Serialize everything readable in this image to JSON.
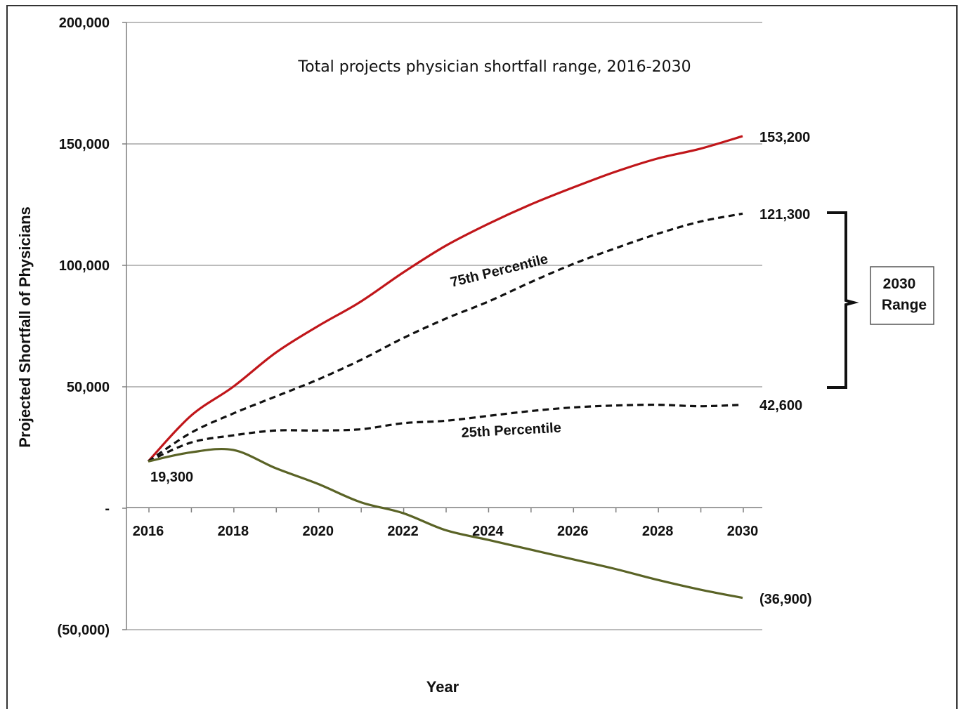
{
  "chart_data": {
    "type": "line",
    "title": "Total projects physician shortfall range, 2016-2030",
    "xlabel": "Year",
    "ylabel": "Projected Shortfall of Physicians",
    "ylim": [
      -50000,
      200000
    ],
    "xlim": [
      2016,
      2030
    ],
    "grid": true,
    "y_ticks": [
      {
        "value": 200000,
        "label": "200,000"
      },
      {
        "value": 150000,
        "label": "150,000"
      },
      {
        "value": 100000,
        "label": "100,000"
      },
      {
        "value": 50000,
        "label": "50,000"
      },
      {
        "value": 0,
        "label": "-"
      },
      {
        "value": -50000,
        "label": "(50,000)"
      }
    ],
    "x_ticks": [
      {
        "value": 2016,
        "label": "2016"
      },
      {
        "value": 2018,
        "label": "2018"
      },
      {
        "value": 2020,
        "label": "2020"
      },
      {
        "value": 2022,
        "label": "2022"
      },
      {
        "value": 2024,
        "label": "2024"
      },
      {
        "value": 2026,
        "label": "2026"
      },
      {
        "value": 2028,
        "label": "2028"
      },
      {
        "value": 2030,
        "label": "2030"
      }
    ],
    "series": [
      {
        "key": "high",
        "color": "#c0161a",
        "dashed": false,
        "x": [
          2016,
          2017,
          2018,
          2019,
          2020,
          2021,
          2022,
          2023,
          2024,
          2025,
          2026,
          2027,
          2028,
          2029,
          2030
        ],
        "values": [
          19300,
          38000,
          50000,
          64000,
          75000,
          85000,
          97000,
          108000,
          117000,
          125000,
          132000,
          138500,
          144000,
          148000,
          153200
        ]
      },
      {
        "key": "p75",
        "color": "#111111",
        "dashed": true,
        "x": [
          2016,
          2017,
          2018,
          2019,
          2020,
          2021,
          2022,
          2023,
          2024,
          2025,
          2026,
          2027,
          2028,
          2029,
          2030
        ],
        "values": [
          19300,
          31000,
          39000,
          46000,
          53000,
          61000,
          70000,
          78000,
          85000,
          93000,
          100500,
          107000,
          113000,
          118000,
          121300
        ]
      },
      {
        "key": "p25",
        "color": "#111111",
        "dashed": true,
        "x": [
          2016,
          2017,
          2018,
          2019,
          2020,
          2021,
          2022,
          2023,
          2024,
          2025,
          2026,
          2027,
          2028,
          2029,
          2030
        ],
        "values": [
          19300,
          27000,
          30000,
          32000,
          32000,
          32500,
          35000,
          36000,
          38000,
          40000,
          41500,
          42300,
          42600,
          42000,
          42600
        ]
      },
      {
        "key": "low",
        "color": "#5a6326",
        "dashed": false,
        "x": [
          2016,
          2017,
          2018,
          2019,
          2020,
          2021,
          2022,
          2023,
          2024,
          2025,
          2026,
          2027,
          2028,
          2029,
          2030
        ],
        "values": [
          19300,
          23000,
          24000,
          16500,
          10000,
          2500,
          -2000,
          -9000,
          -13000,
          -17000,
          -21000,
          -25000,
          -29500,
          -33500,
          -36900
        ]
      }
    ],
    "annotations": {
      "start_value": "19,300",
      "end_high": "153,200",
      "end_p75": "121,300",
      "end_p25": "42,600",
      "end_low": "(36,900)",
      "label_p75": "75th Percentile",
      "label_p25": "25th Percentile",
      "range_box_line1": "2030",
      "range_box_line2": "Range"
    }
  }
}
